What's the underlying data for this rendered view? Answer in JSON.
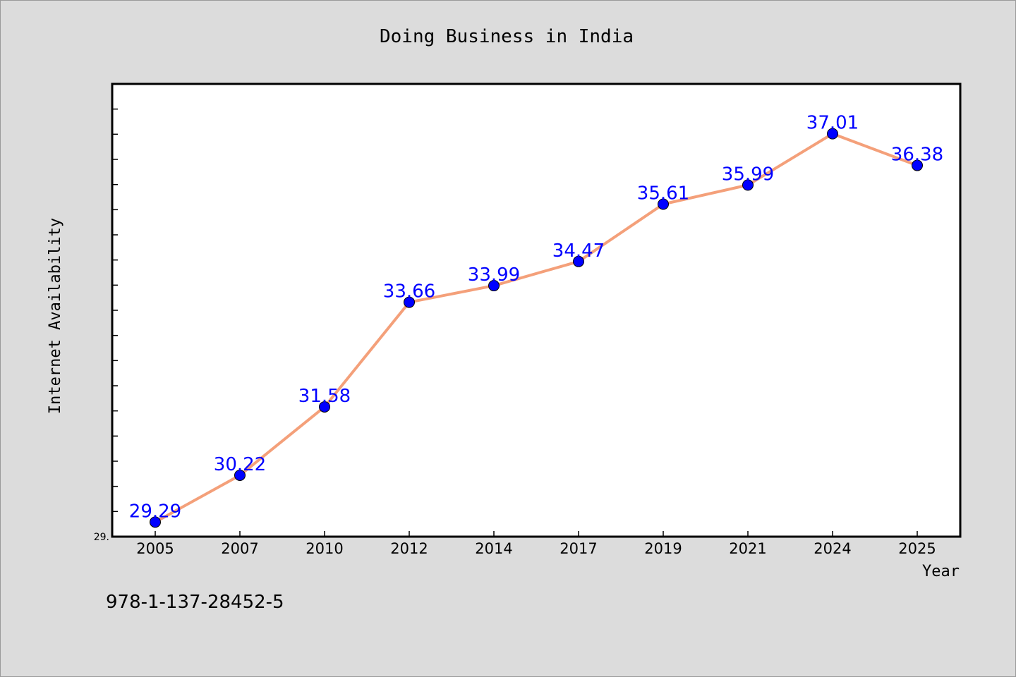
{
  "chart_data": {
    "type": "line",
    "title": "Doing Business in India",
    "xlabel": "Year",
    "ylabel": "Internet Availability",
    "categories": [
      "2005",
      "2007",
      "2010",
      "2012",
      "2014",
      "2017",
      "2019",
      "2021",
      "2024",
      "2025"
    ],
    "series": [
      {
        "values": [
          29.29,
          30.22,
          31.58,
          33.66,
          33.99,
          34.47,
          35.61,
          35.99,
          37.01,
          36.38
        ]
      }
    ],
    "data_labels": [
      "29.29",
      "30.22",
      "31.58",
      "33.66",
      "33.99",
      "34.47",
      "35.61",
      "35.99",
      "37.01",
      "36.38"
    ],
    "y_tick_label": "29.",
    "ylim": [
      29.0,
      38.0
    ],
    "grid": false,
    "line_color": "#f4a07a",
    "marker_color": "#0000ff",
    "label_color": "#0000ff"
  },
  "footer": {
    "isbn": "978-1-137-28452-5"
  }
}
